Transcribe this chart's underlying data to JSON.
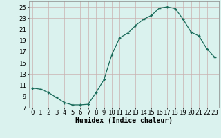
{
  "x": [
    0,
    1,
    2,
    3,
    4,
    5,
    6,
    7,
    8,
    9,
    10,
    11,
    12,
    13,
    14,
    15,
    16,
    17,
    18,
    19,
    20,
    21,
    22,
    23
  ],
  "y": [
    10.5,
    10.3,
    9.7,
    8.8,
    7.9,
    7.5,
    7.5,
    7.6,
    9.7,
    12.0,
    16.5,
    19.5,
    20.3,
    21.7,
    22.8,
    23.5,
    24.8,
    25.0,
    24.7,
    22.8,
    20.5,
    19.8,
    17.5,
    16.0
  ],
  "xlabel": "Humidex (Indice chaleur)",
  "xlim": [
    -0.5,
    23.5
  ],
  "ylim": [
    7,
    26
  ],
  "yticks": [
    7,
    9,
    11,
    13,
    15,
    17,
    19,
    21,
    23,
    25
  ],
  "xtick_labels": [
    "0",
    "1",
    "2",
    "3",
    "4",
    "5",
    "6",
    "7",
    "8",
    "9",
    "10",
    "11",
    "12",
    "13",
    "14",
    "15",
    "16",
    "17",
    "18",
    "19",
    "20",
    "21",
    "22",
    "23"
  ],
  "line_color": "#1a6b5a",
  "marker": "+",
  "bg_color": "#daf2ee",
  "grid_color": "#c9b0b0",
  "xlabel_fontsize": 7,
  "tick_fontsize": 6.5
}
